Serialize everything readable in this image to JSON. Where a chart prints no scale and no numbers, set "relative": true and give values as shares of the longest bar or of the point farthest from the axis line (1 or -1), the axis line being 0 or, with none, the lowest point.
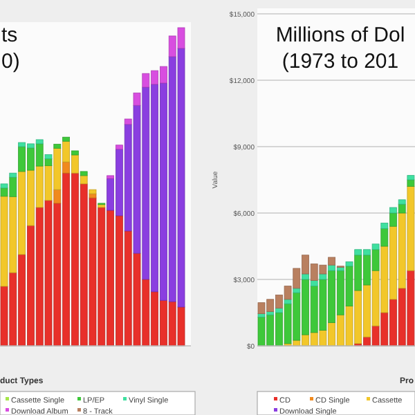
{
  "chart_data": [
    {
      "type": "bar",
      "title": "ts\n0)",
      "xlabel": "duct Types",
      "relative": true,
      "stacked": true,
      "legend": "bottom",
      "categories": [
        null,
        null,
        null,
        null,
        null,
        null,
        null,
        null,
        null,
        null,
        null,
        null,
        null,
        null,
        null,
        null,
        null,
        null,
        null,
        null,
        null
      ],
      "series": [
        {
          "color": "#e8302a",
          "values": [
            0.187,
            0.23,
            0.287,
            0.378,
            0.435,
            0.457,
            0.448,
            0.543,
            0.543,
            0.509,
            0.465,
            0.435,
            0.426,
            0.409,
            0.361,
            0.291,
            0.209,
            0.17,
            0.143,
            0.139,
            0.122
          ]
        },
        {
          "color": "#f08a1e",
          "values": [
            null,
            null,
            null,
            null,
            null,
            null,
            0.043,
            0.035,
            null,
            null,
            0.013,
            null,
            null,
            null,
            null,
            null,
            null,
            null,
            null,
            null,
            null
          ]
        },
        {
          "color": "#f2c72a",
          "values": [
            0.283,
            0.239,
            0.261,
            0.174,
            0.13,
            0.109,
            0.13,
            0.065,
            0.057,
            0.026,
            0.013,
            0.009,
            null,
            null,
            null,
            null,
            null,
            null,
            null,
            null,
            null
          ]
        },
        {
          "name": "Cassette Single",
          "color": "#a6e64a",
          "values": [
            null,
            null,
            null,
            null,
            null,
            null,
            null,
            null,
            null,
            null,
            null,
            null,
            null,
            null,
            null,
            null,
            null,
            null,
            null,
            null,
            null
          ]
        },
        {
          "name": "LP/EP",
          "color": "#3ec83a",
          "values": [
            0.026,
            0.061,
            0.078,
            0.07,
            0.07,
            0.022,
            0.013,
            0.013,
            0.013,
            0.013,
            null,
            0.004,
            null,
            null,
            null,
            null,
            null,
            null,
            null,
            null,
            null
          ]
        },
        {
          "name": "Vinyl Single",
          "color": "#3fe0a0",
          "values": [
            0.013,
            0.013,
            0.013,
            0.013,
            0.013,
            0.013,
            null,
            null,
            null,
            null,
            null,
            null,
            null,
            null,
            null,
            null,
            null,
            null,
            null,
            null,
            null
          ]
        },
        {
          "color": "#8a3ee0",
          "values": [
            null,
            null,
            null,
            null,
            null,
            null,
            null,
            null,
            null,
            null,
            null,
            null,
            0.1,
            0.209,
            0.335,
            0.465,
            0.604,
            0.652,
            0.683,
            0.77,
            0.813
          ]
        },
        {
          "name": "Download Album",
          "color": "#d84ee0",
          "values": [
            null,
            null,
            null,
            null,
            null,
            null,
            null,
            null,
            null,
            null,
            null,
            null,
            0.009,
            0.013,
            0.017,
            0.039,
            0.043,
            0.043,
            0.052,
            0.065,
            0.065
          ]
        },
        {
          "name": "8 - Track",
          "color": "#b98060",
          "values": [
            null,
            null,
            null,
            null,
            null,
            null,
            null,
            null,
            null,
            null,
            null,
            null,
            null,
            null,
            null,
            null,
            null,
            null,
            null,
            null,
            null
          ]
        }
      ]
    },
    {
      "type": "bar",
      "title": "Millions of Dol\n(1973 to 201",
      "xlabel": "Pro",
      "ylabel": "Value",
      "stacked": true,
      "legend": "bottom",
      "grid": "y",
      "ylim": [
        0,
        15000
      ],
      "yticks": [
        {
          "value": 0,
          "label": "$0"
        },
        {
          "value": 3000,
          "label": "$3,000"
        },
        {
          "value": 6000,
          "label": "$6,000"
        },
        {
          "value": 9000,
          "label": "$9,000"
        },
        {
          "value": 12000,
          "label": "$12,000"
        },
        {
          "value": 15000,
          "label": "$15,000"
        }
      ],
      "categories": [
        null,
        null,
        null,
        null,
        null,
        null,
        null,
        null,
        null,
        null,
        null,
        null,
        null,
        null,
        null,
        null,
        null,
        null
      ],
      "series": [
        {
          "name": "CD",
          "color": "#e8302a",
          "values": [
            null,
            null,
            null,
            null,
            null,
            null,
            null,
            null,
            null,
            null,
            null,
            100,
            400,
            900,
            1500,
            2100,
            2600,
            3400
          ]
        },
        {
          "name": "CD Single",
          "color": "#f08a1e",
          "values": [
            null,
            null,
            null,
            null,
            null,
            null,
            null,
            null,
            null,
            null,
            null,
            null,
            null,
            null,
            null,
            null,
            null,
            null
          ]
        },
        {
          "name": "Cassette",
          "color": "#f2c72a",
          "values": [
            null,
            null,
            null,
            100,
            250,
            500,
            600,
            700,
            1050,
            1400,
            1800,
            2400,
            2350,
            2500,
            3000,
            3300,
            3400,
            3800
          ]
        },
        {
          "name": "Download Single",
          "color": "#8a3ee0",
          "values": [
            null,
            null,
            null,
            null,
            null,
            null,
            null,
            null,
            null,
            null,
            null,
            null,
            null,
            null,
            null,
            null,
            null,
            null
          ]
        },
        {
          "color": "#3ec83a",
          "values": [
            1300,
            1400,
            1500,
            1800,
            2150,
            2500,
            2100,
            2300,
            2350,
            2000,
            1800,
            1600,
            1350,
            950,
            800,
            600,
            400,
            300
          ]
        },
        {
          "color": "#3fe0a0",
          "values": [
            150,
            150,
            200,
            200,
            200,
            250,
            250,
            250,
            250,
            150,
            200,
            250,
            250,
            250,
            250,
            250,
            200,
            200
          ]
        },
        {
          "color": "#b98060",
          "values": [
            500,
            550,
            600,
            600,
            900,
            850,
            750,
            400,
            350,
            50,
            null,
            null,
            null,
            null,
            null,
            null,
            null,
            null
          ]
        }
      ]
    }
  ]
}
